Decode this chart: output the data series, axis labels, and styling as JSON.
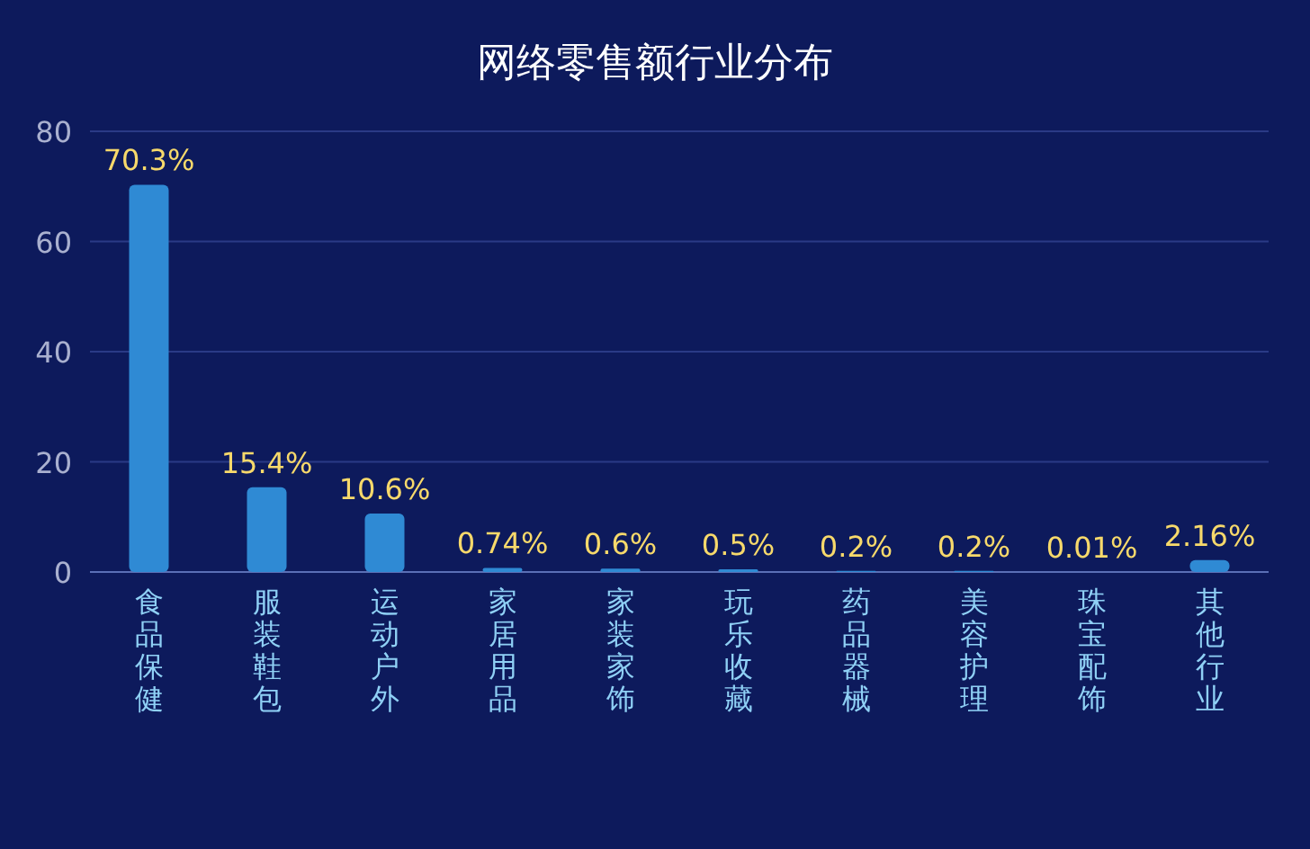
{
  "chart_data": {
    "type": "bar",
    "title": "网络零售额行业分布",
    "categories": [
      "食品保健",
      "服装鞋包",
      "运动户外",
      "家居用品",
      "家装家饰",
      "玩乐收藏",
      "药品器械",
      "美容护理",
      "珠宝配饰",
      "其他行业"
    ],
    "values": [
      70.3,
      15.4,
      10.6,
      0.74,
      0.6,
      0.5,
      0.2,
      0.2,
      0.01,
      2.16
    ],
    "value_labels": [
      "70.3%",
      "15.4%",
      "10.6%",
      "0.74%",
      "0.6%",
      "0.5%",
      "0.2%",
      "0.2%",
      "0.01%",
      "2.16%"
    ],
    "color": "#2f8ad4",
    "ylim": [
      0,
      80
    ],
    "yticks": [
      0,
      20,
      40,
      60,
      80
    ],
    "grid": "y"
  }
}
